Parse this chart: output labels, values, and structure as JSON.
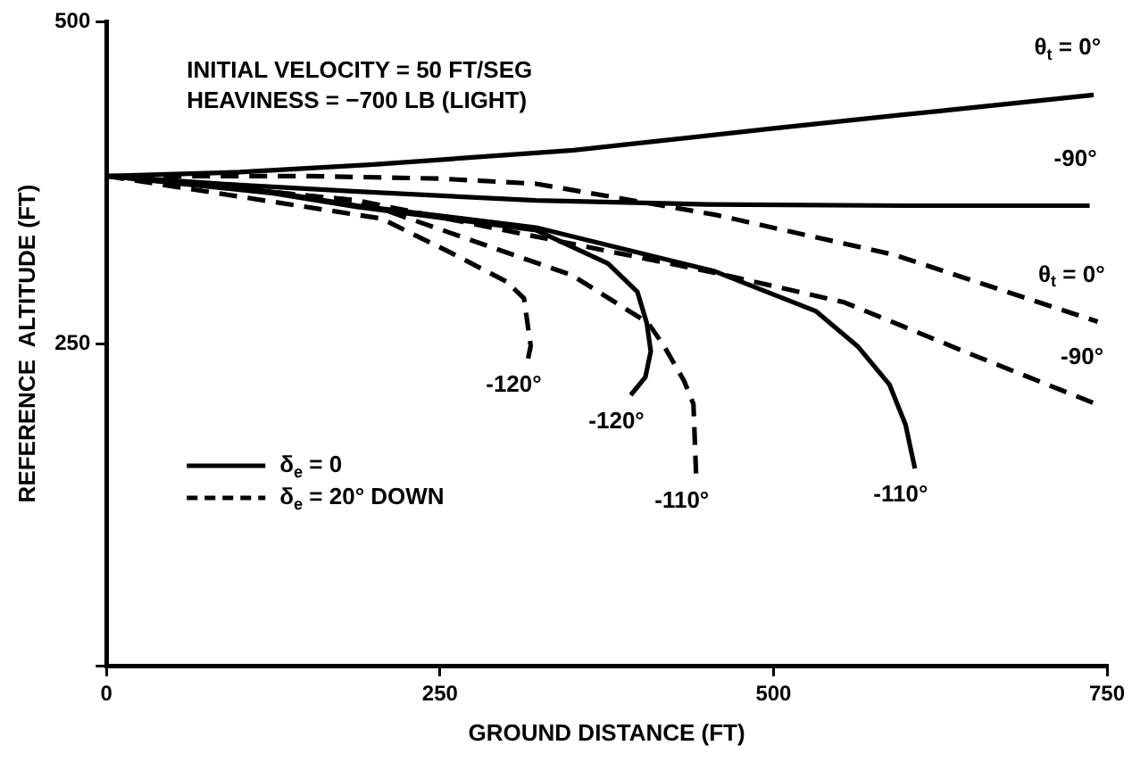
{
  "chart_data": {
    "type": "line",
    "xlabel": "GROUND DISTANCE (FT)",
    "ylabel": "REFERENCE  ALTITUDE (FT)",
    "xlim": [
      0,
      750
    ],
    "ylim": [
      0,
      500
    ],
    "xticks": [
      0,
      250,
      500,
      750
    ],
    "yticks": [
      {
        "value": 0,
        "label": null
      },
      250,
      500
    ],
    "grid": false,
    "marker": "none",
    "legend": "bottom left",
    "series": [
      {
        "name": "δ$_{e}$ = 0",
        "color": "#000000",
        "line_style": "solid",
        "x": [
          0,
          100,
          200,
          350,
          500,
          620,
          740
        ],
        "values": [
          380,
          383,
          389,
          400,
          417,
          430,
          443
        ]
      },
      {
        "color": "#000000",
        "line_style": "solid",
        "x": [
          0,
          100,
          188,
          322,
          450,
          600,
          737
        ],
        "values": [
          380,
          373,
          368,
          361,
          358,
          357,
          357
        ]
      },
      {
        "color": "#000000",
        "line_style": "solid",
        "x": [
          0,
          122,
          188,
          322,
          456,
          532,
          563,
          587,
          599,
          606
        ],
        "values": [
          380,
          368,
          357,
          340,
          306,
          275,
          248,
          218,
          187,
          153
        ]
      },
      {
        "color": "#000000",
        "line_style": "solid",
        "x": [
          0,
          122,
          188,
          322,
          376,
          398,
          405,
          408,
          404,
          393
        ],
        "values": [
          380,
          367,
          356,
          338,
          312,
          290,
          266,
          244,
          224,
          210
        ]
      },
      {
        "name": "δ$_{e}$ = 20° DOWN",
        "color": "#000000",
        "line_style": "dashed",
        "x": [
          0,
          150,
          250,
          322,
          456,
          590,
          743
        ],
        "values": [
          380,
          380,
          378,
          374,
          350,
          319,
          267
        ]
      },
      {
        "color": "#000000",
        "line_style": "dashed",
        "x": [
          0,
          188,
          322,
          456,
          553,
          645,
          742
        ],
        "values": [
          380,
          361,
          333,
          305,
          282,
          243,
          203
        ]
      },
      {
        "color": "#000000",
        "line_style": "dashed",
        "x": [
          0,
          188,
          349,
          406,
          418,
          433,
          440,
          442
        ],
        "values": [
          380,
          361,
          303,
          266,
          248,
          221,
          203,
          148
        ]
      },
      {
        "color": "#000000",
        "line_style": "dashed",
        "x": [
          0,
          206,
          259,
          300,
          313,
          318,
          316
        ],
        "values": [
          380,
          347,
          320,
          298,
          285,
          248,
          238
        ]
      }
    ],
    "annotations": [
      "INITIAL VELOCITY = 50 FT/SEG",
      "HEAVINESS = −700 LB (LIGHT)",
      {
        "text": "θ$_{t}$ = 0°",
        "x": 740,
        "y": 443
      },
      {
        "text": "-90°",
        "x": 737,
        "y": 357
      },
      {
        "text": "θ$_{t}$ = 0°",
        "x": 743,
        "y": 267
      },
      {
        "text": "-90°",
        "x": 742,
        "y": 203
      },
      {
        "text": "-120°",
        "x": 316,
        "y": 238
      },
      {
        "text": "-120°",
        "x": 393,
        "y": 210
      },
      {
        "text": "-110°",
        "x": 442,
        "y": 148
      },
      {
        "text": "-110°",
        "x": 606,
        "y": 153
      }
    ]
  }
}
